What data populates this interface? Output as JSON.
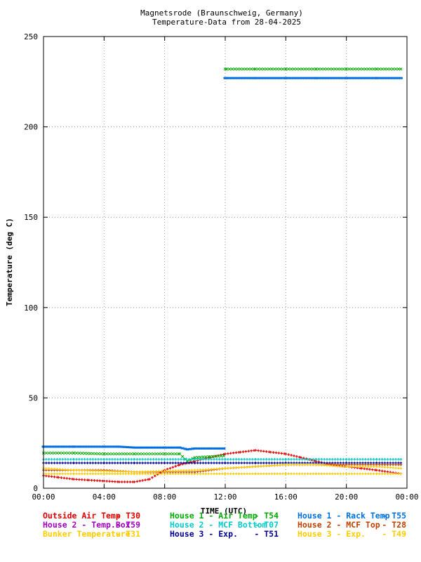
{
  "chart_data": {
    "type": "scatter",
    "title": "Magnetsrode (Braunschweig, Germany)",
    "subtitle": "Temperature-Data from 28-04-2025",
    "xlabel": "TIME (UTC)",
    "ylabel": "Temperature (deg C)",
    "xlim": [
      "00:00",
      "24:00"
    ],
    "ylim": [
      0,
      250
    ],
    "x_ticks": [
      "00:00",
      "04:00",
      "08:00",
      "12:00",
      "16:00",
      "20:00",
      "00:00"
    ],
    "y_ticks": [
      "0",
      "50",
      "100",
      "150",
      "200",
      "250"
    ],
    "grid": true,
    "legend_position": "bottom",
    "series": [
      {
        "name": "Outside Air Temp",
        "code": "T30",
        "color": "#e00000",
        "marker": "plus",
        "x": [
          0,
          1,
          2,
          3,
          4,
          5,
          6,
          7,
          8,
          9,
          10,
          11,
          12,
          13,
          14,
          15,
          16,
          17,
          18,
          19,
          20,
          21,
          22,
          23.6
        ],
        "y": [
          7,
          6,
          5,
          4.5,
          4,
          3.5,
          3.5,
          5,
          10,
          13,
          15,
          17,
          19,
          20,
          21,
          20,
          19,
          17,
          15,
          13,
          12,
          11,
          10,
          8
        ]
      },
      {
        "name": "House 2 - Temp.Box",
        "code": "T59",
        "color": "#a000c0",
        "marker": "plus",
        "x": [],
        "y": []
      },
      {
        "name": "Bunker Temperature",
        "code": "T31",
        "color": "#ffcc00",
        "marker": "plus",
        "x": [
          0,
          2,
          4,
          6,
          8,
          10,
          12,
          14,
          16,
          18,
          20,
          22,
          23.6
        ],
        "y": [
          8,
          8,
          8,
          8,
          8,
          8,
          8,
          8,
          8,
          8,
          8,
          8,
          8
        ]
      },
      {
        "name": "House 1 - Air  Temp",
        "code": "T54",
        "color": "#00aa00",
        "marker": "x",
        "x": [
          0,
          2,
          4,
          6,
          8,
          9,
          9.5,
          10,
          11,
          12,
          12.1,
          14,
          16,
          18,
          20,
          22,
          23.6
        ],
        "y": [
          19.5,
          19.5,
          19,
          19,
          19,
          19,
          15,
          17,
          17.5,
          18,
          232,
          232,
          232,
          232,
          232,
          232,
          232
        ]
      },
      {
        "name": "House 2 - MCF Bottom",
        "code": "T07",
        "color": "#00cccc",
        "marker": "plus",
        "x": [
          0,
          2,
          4,
          6,
          8,
          10,
          12,
          14,
          16,
          18,
          20,
          22,
          23.6
        ],
        "y": [
          16,
          16,
          16,
          16,
          16,
          16,
          16,
          16,
          16,
          16,
          16,
          16,
          16
        ]
      },
      {
        "name": "House 3 - Exp.",
        "code": "T51",
        "color": "#000090",
        "marker": "plus",
        "x": [
          0,
          2,
          4,
          6,
          8,
          10,
          12,
          14,
          16,
          18,
          20,
          22,
          23.6
        ],
        "y": [
          14,
          14,
          14,
          14,
          14,
          14,
          14,
          14,
          14,
          14,
          14,
          14,
          14
        ]
      },
      {
        "name": "House 1 - Rack Temp",
        "code": "T55",
        "color": "#0070e0",
        "marker": "dash",
        "x": [
          0,
          2,
          4,
          5,
          6,
          8,
          9,
          9.5,
          10,
          11,
          12,
          12.1,
          14,
          16,
          18,
          20,
          22,
          23.6
        ],
        "y": [
          23,
          23,
          23,
          23,
          22.5,
          22.5,
          22.5,
          21.5,
          22,
          22,
          22,
          227,
          227,
          227,
          227,
          227,
          227,
          227
        ]
      },
      {
        "name": "House 2 - MCF Top",
        "code": "T28",
        "color": "#c04000",
        "marker": "plus",
        "x": [
          0,
          2,
          4,
          6,
          8,
          10,
          12,
          14,
          16,
          18,
          20,
          22,
          23.6
        ],
        "y": [
          10,
          10,
          10,
          9,
          9,
          9,
          11,
          12,
          13,
          13,
          13,
          13,
          13
        ]
      },
      {
        "name": "House 3 - Exp.",
        "code": "T49",
        "color": "#ffcc00",
        "marker": "plus",
        "x": [
          0,
          2,
          4,
          6,
          8,
          10,
          12,
          14,
          16,
          18,
          20,
          22,
          23.6
        ],
        "y": [
          11,
          10,
          9.5,
          9,
          9.5,
          10,
          11,
          12,
          13,
          13,
          12,
          12,
          11
        ]
      }
    ]
  }
}
